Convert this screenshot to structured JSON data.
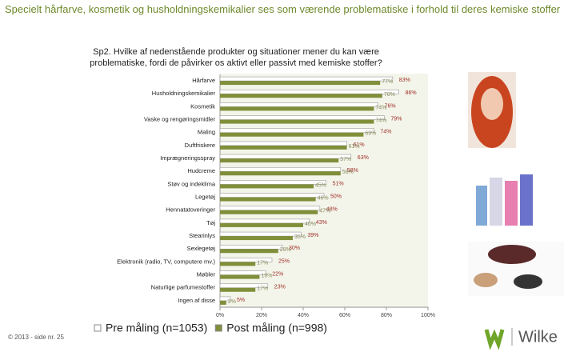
{
  "header": {
    "title": "Specielt hårfarve, kosmetik og husholdningskemikalier ses som værende problematiske i forhold til deres kemiske stoffer"
  },
  "chart_data": {
    "type": "hbar",
    "title": "Sp2. Hvilke af nedenstående produkter og situationer mener du kan være problematiske, fordi de påvirker os aktivt eller passivt med kemiske stoffer?",
    "categories": [
      "Hårfarve",
      "Husholdningskemikalier",
      "Kosmetik",
      "Vaske og rengøringsmidler",
      "Maling",
      "Duftfriskere",
      "Imprægneringsspray",
      "Hudcreme",
      "Støv og indeklima",
      "Legetøj",
      "Hennatatoveringer",
      "Tøj",
      "Stearinlys",
      "Sexlegetøj",
      "Elektronik (radio, TV, computere mv.)",
      "Møbler",
      "Naturlige parfumestoffer",
      "Ingen af disse"
    ],
    "series": [
      {
        "name": "Pre måling (n=1053)",
        "color": "#ffffff",
        "label_color": "#a0302a",
        "values": [
          83,
          86,
          76,
          79,
          74,
          61,
          63,
          58,
          51,
          50,
          48,
          43,
          39,
          30,
          25,
          22,
          23,
          5
        ],
        "value_labels": [
          "83%",
          "86%",
          "76%",
          "79%",
          "74%",
          "61%",
          "63%",
          "58%",
          "51%",
          "50%",
          "48%",
          "43%",
          "39%",
          "30%",
          "25%",
          "22%",
          "23%",
          "5%"
        ]
      },
      {
        "name": "Post måling (n=998)",
        "color": "#7f8f3a",
        "label_color": "#8a8a60",
        "values": [
          77,
          78,
          74,
          74,
          69,
          61,
          57,
          58,
          45,
          46,
          47,
          40,
          35,
          28,
          17,
          19,
          17,
          3
        ],
        "value_labels": [
          "77%",
          "78%",
          "74%",
          "74%",
          "69%",
          "61%",
          "57%",
          "58%",
          "45%",
          "46%",
          "47%",
          "40%",
          "35%",
          "28%",
          "17%",
          "19%",
          "17%",
          "3%"
        ]
      }
    ],
    "xlim": [
      0,
      100
    ],
    "xticks": [
      {
        "value": 0,
        "label": "0%"
      },
      {
        "value": 20,
        "label": "20%"
      },
      {
        "value": 40,
        "label": "40%"
      },
      {
        "value": 60,
        "label": "60%"
      },
      {
        "value": 80,
        "label": "80%"
      },
      {
        "value": 100,
        "label": "100%"
      }
    ]
  },
  "footer": {
    "page": "© 2013 - side nr. 25",
    "logo": "Wilke"
  }
}
